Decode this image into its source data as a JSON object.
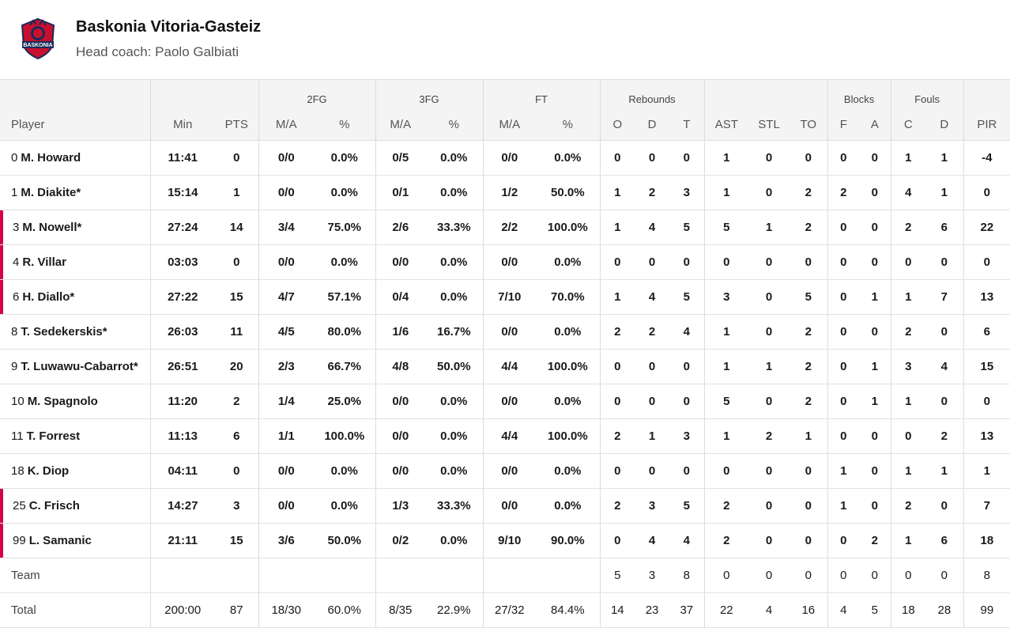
{
  "team": {
    "name": "Baskonia Vitoria-Gasteiz",
    "coach": "Head coach: Paolo Galbiati",
    "logo_text": "BASKONIA",
    "logo_color": "#c8102e"
  },
  "accent_color": "#d6004f",
  "header": {
    "groups": {
      "fg2": "2FG",
      "fg3": "3FG",
      "ft": "FT",
      "rebounds": "Rebounds",
      "blocks": "Blocks",
      "fouls": "Fouls"
    },
    "cols": {
      "player": "Player",
      "min": "Min",
      "pts": "PTS",
      "fg2_ma": "M/A",
      "fg2_pct": "%",
      "fg3_ma": "M/A",
      "fg3_pct": "%",
      "ft_ma": "M/A",
      "ft_pct": "%",
      "reb_o": "O",
      "reb_d": "D",
      "reb_t": "T",
      "ast": "AST",
      "stl": "STL",
      "to": "TO",
      "blk_f": "F",
      "blk_a": "A",
      "foul_c": "C",
      "foul_d": "D",
      "pir": "PIR"
    }
  },
  "players": [
    {
      "num": "0",
      "name": "M. Howard",
      "on_court": false,
      "min": "11:41",
      "pts": "0",
      "fg2_ma": "0/0",
      "fg2_pct": "0.0%",
      "fg3_ma": "0/5",
      "fg3_pct": "0.0%",
      "ft_ma": "0/0",
      "ft_pct": "0.0%",
      "reb_o": "0",
      "reb_d": "0",
      "reb_t": "0",
      "ast": "1",
      "stl": "0",
      "to": "0",
      "blk_f": "0",
      "blk_a": "0",
      "foul_c": "1",
      "foul_d": "1",
      "pir": "-4"
    },
    {
      "num": "1",
      "name": "M. Diakite*",
      "on_court": false,
      "min": "15:14",
      "pts": "1",
      "fg2_ma": "0/0",
      "fg2_pct": "0.0%",
      "fg3_ma": "0/1",
      "fg3_pct": "0.0%",
      "ft_ma": "1/2",
      "ft_pct": "50.0%",
      "reb_o": "1",
      "reb_d": "2",
      "reb_t": "3",
      "ast": "1",
      "stl": "0",
      "to": "2",
      "blk_f": "2",
      "blk_a": "0",
      "foul_c": "4",
      "foul_d": "1",
      "pir": "0"
    },
    {
      "num": "3",
      "name": "M. Nowell*",
      "on_court": true,
      "min": "27:24",
      "pts": "14",
      "fg2_ma": "3/4",
      "fg2_pct": "75.0%",
      "fg3_ma": "2/6",
      "fg3_pct": "33.3%",
      "ft_ma": "2/2",
      "ft_pct": "100.0%",
      "reb_o": "1",
      "reb_d": "4",
      "reb_t": "5",
      "ast": "5",
      "stl": "1",
      "to": "2",
      "blk_f": "0",
      "blk_a": "0",
      "foul_c": "2",
      "foul_d": "6",
      "pir": "22"
    },
    {
      "num": "4",
      "name": "R. Villar",
      "on_court": true,
      "min": "03:03",
      "pts": "0",
      "fg2_ma": "0/0",
      "fg2_pct": "0.0%",
      "fg3_ma": "0/0",
      "fg3_pct": "0.0%",
      "ft_ma": "0/0",
      "ft_pct": "0.0%",
      "reb_o": "0",
      "reb_d": "0",
      "reb_t": "0",
      "ast": "0",
      "stl": "0",
      "to": "0",
      "blk_f": "0",
      "blk_a": "0",
      "foul_c": "0",
      "foul_d": "0",
      "pir": "0"
    },
    {
      "num": "6",
      "name": "H. Diallo*",
      "on_court": true,
      "min": "27:22",
      "pts": "15",
      "fg2_ma": "4/7",
      "fg2_pct": "57.1%",
      "fg3_ma": "0/4",
      "fg3_pct": "0.0%",
      "ft_ma": "7/10",
      "ft_pct": "70.0%",
      "reb_o": "1",
      "reb_d": "4",
      "reb_t": "5",
      "ast": "3",
      "stl": "0",
      "to": "5",
      "blk_f": "0",
      "blk_a": "1",
      "foul_c": "1",
      "foul_d": "7",
      "pir": "13"
    },
    {
      "num": "8",
      "name": "T. Sedekerskis*",
      "on_court": false,
      "min": "26:03",
      "pts": "11",
      "fg2_ma": "4/5",
      "fg2_pct": "80.0%",
      "fg3_ma": "1/6",
      "fg3_pct": "16.7%",
      "ft_ma": "0/0",
      "ft_pct": "0.0%",
      "reb_o": "2",
      "reb_d": "2",
      "reb_t": "4",
      "ast": "1",
      "stl": "0",
      "to": "2",
      "blk_f": "0",
      "blk_a": "0",
      "foul_c": "2",
      "foul_d": "0",
      "pir": "6"
    },
    {
      "num": "9",
      "name": "T. Luwawu-Cabarrot*",
      "on_court": false,
      "min": "26:51",
      "pts": "20",
      "fg2_ma": "2/3",
      "fg2_pct": "66.7%",
      "fg3_ma": "4/8",
      "fg3_pct": "50.0%",
      "ft_ma": "4/4",
      "ft_pct": "100.0%",
      "reb_o": "0",
      "reb_d": "0",
      "reb_t": "0",
      "ast": "1",
      "stl": "1",
      "to": "2",
      "blk_f": "0",
      "blk_a": "1",
      "foul_c": "3",
      "foul_d": "4",
      "pir": "15"
    },
    {
      "num": "10",
      "name": "M. Spagnolo",
      "on_court": false,
      "min": "11:20",
      "pts": "2",
      "fg2_ma": "1/4",
      "fg2_pct": "25.0%",
      "fg3_ma": "0/0",
      "fg3_pct": "0.0%",
      "ft_ma": "0/0",
      "ft_pct": "0.0%",
      "reb_o": "0",
      "reb_d": "0",
      "reb_t": "0",
      "ast": "5",
      "stl": "0",
      "to": "2",
      "blk_f": "0",
      "blk_a": "1",
      "foul_c": "1",
      "foul_d": "0",
      "pir": "0"
    },
    {
      "num": "11",
      "name": "T. Forrest",
      "on_court": false,
      "min": "11:13",
      "pts": "6",
      "fg2_ma": "1/1",
      "fg2_pct": "100.0%",
      "fg3_ma": "0/0",
      "fg3_pct": "0.0%",
      "ft_ma": "4/4",
      "ft_pct": "100.0%",
      "reb_o": "2",
      "reb_d": "1",
      "reb_t": "3",
      "ast": "1",
      "stl": "2",
      "to": "1",
      "blk_f": "0",
      "blk_a": "0",
      "foul_c": "0",
      "foul_d": "2",
      "pir": "13"
    },
    {
      "num": "18",
      "name": "K. Diop",
      "on_court": false,
      "min": "04:11",
      "pts": "0",
      "fg2_ma": "0/0",
      "fg2_pct": "0.0%",
      "fg3_ma": "0/0",
      "fg3_pct": "0.0%",
      "ft_ma": "0/0",
      "ft_pct": "0.0%",
      "reb_o": "0",
      "reb_d": "0",
      "reb_t": "0",
      "ast": "0",
      "stl": "0",
      "to": "0",
      "blk_f": "1",
      "blk_a": "0",
      "foul_c": "1",
      "foul_d": "1",
      "pir": "1"
    },
    {
      "num": "25",
      "name": "C. Frisch",
      "on_court": true,
      "min": "14:27",
      "pts": "3",
      "fg2_ma": "0/0",
      "fg2_pct": "0.0%",
      "fg3_ma": "1/3",
      "fg3_pct": "33.3%",
      "ft_ma": "0/0",
      "ft_pct": "0.0%",
      "reb_o": "2",
      "reb_d": "3",
      "reb_t": "5",
      "ast": "2",
      "stl": "0",
      "to": "0",
      "blk_f": "1",
      "blk_a": "0",
      "foul_c": "2",
      "foul_d": "0",
      "pir": "7"
    },
    {
      "num": "99",
      "name": "L. Samanic",
      "on_court": true,
      "min": "21:11",
      "pts": "15",
      "fg2_ma": "3/6",
      "fg2_pct": "50.0%",
      "fg3_ma": "0/2",
      "fg3_pct": "0.0%",
      "ft_ma": "9/10",
      "ft_pct": "90.0%",
      "reb_o": "0",
      "reb_d": "4",
      "reb_t": "4",
      "ast": "2",
      "stl": "0",
      "to": "0",
      "blk_f": "0",
      "blk_a": "2",
      "foul_c": "1",
      "foul_d": "6",
      "pir": "18"
    }
  ],
  "team_row": {
    "label": "Team",
    "min": "",
    "pts": "",
    "fg2_ma": "",
    "fg2_pct": "",
    "fg3_ma": "",
    "fg3_pct": "",
    "ft_ma": "",
    "ft_pct": "",
    "reb_o": "5",
    "reb_d": "3",
    "reb_t": "8",
    "ast": "0",
    "stl": "0",
    "to": "0",
    "blk_f": "0",
    "blk_a": "0",
    "foul_c": "0",
    "foul_d": "0",
    "pir": "8"
  },
  "total_row": {
    "label": "Total",
    "min": "200:00",
    "pts": "87",
    "fg2_ma": "18/30",
    "fg2_pct": "60.0%",
    "fg3_ma": "8/35",
    "fg3_pct": "22.9%",
    "ft_ma": "27/32",
    "ft_pct": "84.4%",
    "reb_o": "14",
    "reb_d": "23",
    "reb_t": "37",
    "ast": "22",
    "stl": "4",
    "to": "16",
    "blk_f": "4",
    "blk_a": "5",
    "foul_c": "18",
    "foul_d": "28",
    "pir": "99"
  }
}
